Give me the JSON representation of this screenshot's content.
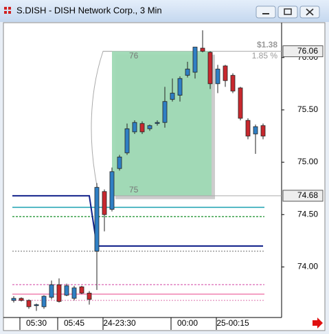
{
  "window_title": "S.DISH - DISH Network Corp., 3 Min",
  "chart_data": {
    "type": "candlestick",
    "categories": [
      null,
      null,
      null,
      "05:30",
      null,
      null,
      null,
      null,
      "05:45",
      null,
      null,
      null,
      null,
      null,
      "24-23:30",
      null,
      null,
      null,
      null,
      null,
      null,
      null,
      null,
      "00:00",
      null,
      null,
      null,
      null,
      null,
      "25-00:15",
      null,
      null,
      null,
      null
    ],
    "open": [
      73.68,
      73.7,
      73.68,
      73.63,
      73.62,
      73.71,
      73.83,
      73.73,
      73.7,
      73.81,
      73.75,
      74.15,
      74.72,
      74.55,
      74.94,
      75.09,
      75.29,
      75.37,
      75.32,
      75.37,
      75.38,
      75.6,
      75.64,
      75.83,
      75.86,
      76.09,
      76.05,
      75.75,
      75.92,
      75.83,
      75.71,
      75.4,
      75.27,
      75.35
    ],
    "high": [
      73.72,
      73.71,
      73.69,
      73.65,
      73.73,
      73.87,
      73.89,
      73.84,
      73.82,
      73.82,
      73.77,
      74.8,
      74.74,
      74.95,
      75.07,
      75.37,
      75.4,
      75.39,
      75.36,
      75.4,
      75.72,
      75.8,
      75.82,
      75.96,
      76.1,
      76.26,
      76.06,
      75.93,
      75.93,
      75.85,
      75.72,
      75.42,
      75.36,
      75.37
    ],
    "low": [
      73.66,
      73.67,
      73.6,
      73.58,
      73.6,
      73.69,
      73.66,
      73.72,
      73.68,
      73.74,
      73.64,
      73.78,
      74.34,
      74.53,
      74.92,
      75.07,
      75.27,
      75.27,
      75.3,
      75.35,
      75.33,
      75.58,
      75.58,
      75.81,
      75.8,
      76.05,
      75.7,
      75.66,
      75.72,
      75.66,
      75.4,
      75.22,
      75.08,
      75.22
    ],
    "close": [
      73.7,
      73.68,
      73.62,
      73.64,
      73.72,
      73.83,
      73.67,
      73.82,
      73.8,
      73.75,
      73.69,
      74.76,
      74.5,
      74.91,
      75.05,
      75.32,
      75.38,
      75.29,
      75.35,
      75.38,
      75.58,
      75.66,
      75.8,
      75.89,
      76.1,
      76.06,
      75.75,
      75.89,
      75.78,
      75.68,
      75.42,
      75.25,
      75.34,
      75.25
    ],
    "up_color": "#2f7fc4",
    "down_color": "#c8282e",
    "ylim": [
      73.53,
      76.32
    ],
    "yticks": [
      {
        "value": 74,
        "label": "74.00"
      },
      {
        "value": 74.5,
        "label": "74.50"
      },
      {
        "value": 75,
        "label": "75.00"
      },
      {
        "value": 75.5,
        "label": "75.50"
      },
      {
        "value": 76,
        "label": "76.00"
      }
    ],
    "price_labels": [
      76.06,
      74.68
    ],
    "box": {
      "top": 76.06,
      "bottom": 74.68,
      "color": "#9ed9b4",
      "top_label": "76",
      "bottom_label": "75",
      "change": "$1.38",
      "change_pct": "1.85 %"
    },
    "levels": [
      {
        "value": 74.57,
        "color": "#1aa0b0",
        "dash": "none"
      },
      {
        "value": 74.48,
        "color": "#3aa04a",
        "dash": "3,2"
      },
      {
        "value": 74.15,
        "color": "#999999",
        "dash": "2,2"
      },
      {
        "value": 73.83,
        "color": "#e080c0",
        "dash": "3,2"
      },
      {
        "value": 73.74,
        "color": "#f080b0",
        "dash": "none"
      },
      {
        "value": 73.68,
        "color": "#e8a0c8",
        "dash": "2,2"
      }
    ],
    "step_line": {
      "color": "#10208a",
      "values": [
        74.68,
        74.68,
        74.68,
        74.68,
        74.68,
        74.68,
        74.68,
        74.68,
        74.68,
        74.68,
        74.68,
        74.2,
        74.2,
        74.2,
        74.2,
        74.2,
        74.2,
        74.2,
        74.2,
        74.2,
        74.2,
        74.2,
        74.2,
        74.2,
        74.2,
        74.2,
        74.2,
        74.2,
        74.2,
        74.2,
        74.2,
        74.2,
        74.2,
        74.2
      ]
    }
  }
}
